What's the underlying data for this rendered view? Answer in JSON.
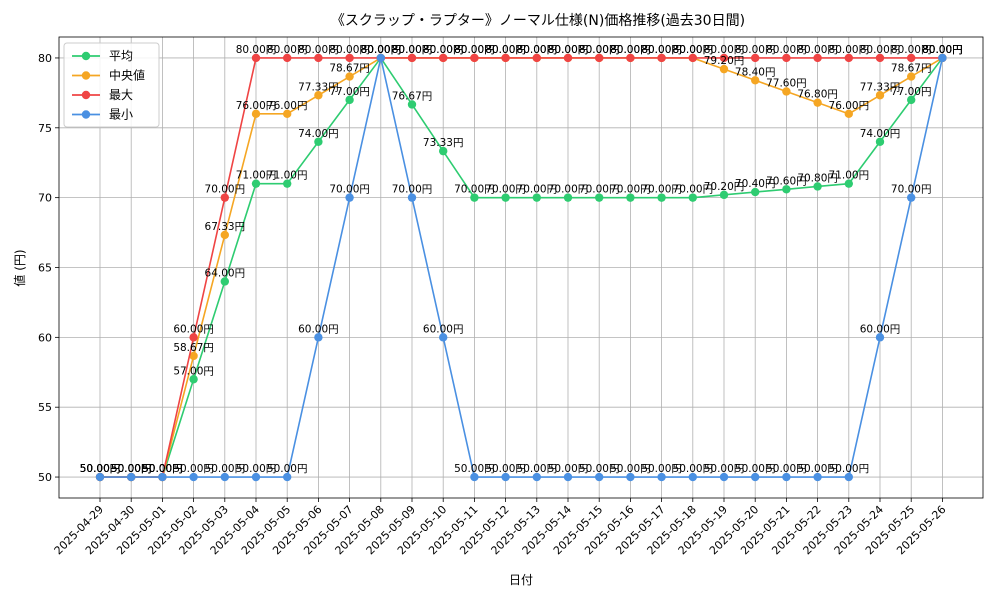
{
  "chart_data": {
    "type": "line",
    "title": "《スクラップ・ラプター》ノーマル仕様(N)価格推移(過去30日間)",
    "xlabel": "日付",
    "ylabel": "値 (円)",
    "ylim": [
      48.5,
      81.5
    ],
    "yticks": [
      50,
      55,
      60,
      65,
      70,
      75,
      80
    ],
    "grid": true,
    "legend_position": "top-left",
    "label_suffix": "円",
    "categories": [
      "2025-04-29",
      "2025-04-30",
      "2025-05-01",
      "2025-05-02",
      "2025-05-03",
      "2025-05-04",
      "2025-05-05",
      "2025-05-06",
      "2025-05-07",
      "2025-05-08",
      "2025-05-09",
      "2025-05-10",
      "2025-05-11",
      "2025-05-12",
      "2025-05-13",
      "2025-05-14",
      "2025-05-15",
      "2025-05-16",
      "2025-05-17",
      "2025-05-18",
      "2025-05-19",
      "2025-05-20",
      "2025-05-21",
      "2025-05-22",
      "2025-05-23",
      "2025-05-24",
      "2025-05-25",
      "2025-05-26"
    ],
    "series": [
      {
        "name": "平均",
        "color": "#2ecc71",
        "values": [
          50,
          50,
          50,
          57,
          64,
          71,
          71,
          74,
          77,
          80,
          76.67,
          73.33,
          70,
          70,
          70,
          70,
          70,
          70,
          70,
          70,
          70.2,
          70.4,
          70.6,
          70.8,
          71,
          74,
          77,
          80
        ],
        "labels": [
          "50.00円",
          "50.00円",
          "50.00円",
          "57.00円",
          "64.00円",
          "71.00円",
          "71.00円",
          "74.00円",
          "77.00円",
          "80.00円",
          "76.67円",
          "73.33円",
          "70.00円",
          "70.00円",
          "70.00円",
          "70.00円",
          "70.00円",
          "70.00円",
          "70.00円",
          "70.00円",
          "70.20円",
          "70.40円",
          "70.60円",
          "70.80円",
          "71.00円",
          "74.00円",
          "77.00円",
          "80.00円"
        ]
      },
      {
        "name": "中央値",
        "color": "#f5a623",
        "values": [
          50,
          50,
          50,
          58.67,
          67.33,
          76,
          76,
          77.33,
          78.67,
          80,
          80,
          80,
          80,
          80,
          80,
          80,
          80,
          80,
          80,
          80,
          79.2,
          78.4,
          77.6,
          76.8,
          76,
          77.33,
          78.67,
          80
        ],
        "labels": [
          "50.00円",
          "50.00円",
          "50.00円",
          "58.67円",
          "67.33円",
          "76.00円",
          "76.00円",
          "77.33円",
          "78.67円",
          "80.00円",
          "80.00円",
          "80.00円",
          "80.00円",
          "80.00円",
          "80.00円",
          "80.00円",
          "80.00円",
          "80.00円",
          "80.00円",
          "80.00円",
          "79.20円",
          "78.40円",
          "77.60円",
          "76.80円",
          "76.00円",
          "77.33円",
          "78.67円",
          "80.00円"
        ]
      },
      {
        "name": "最大",
        "color": "#ef4444",
        "values": [
          50,
          50,
          50,
          60,
          70,
          80,
          80,
          80,
          80,
          80,
          80,
          80,
          80,
          80,
          80,
          80,
          80,
          80,
          80,
          80,
          80,
          80,
          80,
          80,
          80,
          80,
          80,
          80
        ],
        "labels": [
          "50.00円",
          "50.00円",
          "50.00円",
          "60.00円",
          "70.00円",
          "80.00円",
          "80.00円",
          "80.00円",
          "80.00円",
          "80.00円",
          "80.00円",
          "80.00円",
          "80.00円",
          "80.00円",
          "80.00円",
          "80.00円",
          "80.00円",
          "80.00円",
          "80.00円",
          "80.00円",
          "80.00円",
          "80.00円",
          "80.00円",
          "80.00円",
          "80.00円",
          "80.00円",
          "80.00円",
          "80.00円"
        ]
      },
      {
        "name": "最小",
        "color": "#4a90e2",
        "values": [
          50,
          50,
          50,
          50,
          50,
          50,
          50,
          60,
          70,
          80,
          70,
          60,
          50,
          50,
          50,
          50,
          50,
          50,
          50,
          50,
          50,
          50,
          50,
          50,
          50,
          60,
          70,
          80
        ],
        "labels": [
          "50.00円",
          "50.00円",
          "50.00円",
          "50.00円",
          "50.00円",
          "50.00円",
          "50.00円",
          "60.00円",
          "70.00円",
          "80.00円",
          "70.00円",
          "60.00円",
          "50.00円",
          "50.00円",
          "50.00円",
          "50.00円",
          "50.00円",
          "50.00円",
          "50.00円",
          "50.00円",
          "50.00円",
          "50.00円",
          "50.00円",
          "50.00円",
          "50.00円",
          "60.00円",
          "70.00円",
          "80.00円"
        ]
      }
    ]
  }
}
